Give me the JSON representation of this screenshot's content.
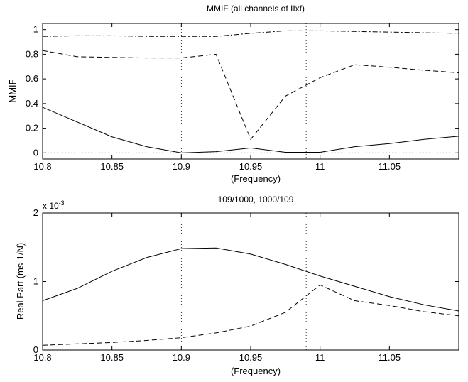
{
  "chart_data": [
    {
      "type": "line",
      "title": "MMIF (all channels of IIxf)",
      "xlabel": "(Frequency)",
      "ylabel": "MMIF",
      "xlim": [
        10.8,
        11.1
      ],
      "ylim": [
        -0.05,
        1.05
      ],
      "xticks": [
        "10.8",
        "10.85",
        "10.9",
        "10.95",
        "11",
        "11.05"
      ],
      "yticks": [
        "0",
        "0.2",
        "0.4",
        "0.6",
        "0.8",
        "1"
      ],
      "grid": false,
      "vlines": [
        10.9,
        10.99
      ],
      "hlines": [
        0,
        0.99
      ],
      "series": [
        {
          "style": "solid",
          "x": [
            10.8,
            10.825,
            10.85,
            10.875,
            10.9,
            10.925,
            10.95,
            10.975,
            11.0,
            11.025,
            11.05,
            11.075,
            11.1
          ],
          "y": [
            0.37,
            0.25,
            0.13,
            0.05,
            0.0,
            0.01,
            0.04,
            0.005,
            0.005,
            0.05,
            0.075,
            0.11,
            0.135
          ]
        },
        {
          "style": "dashed",
          "x": [
            10.8,
            10.825,
            10.85,
            10.875,
            10.9,
            10.925,
            10.95,
            10.975,
            11.0,
            11.025,
            11.05,
            11.075,
            11.1
          ],
          "y": [
            0.83,
            0.78,
            0.775,
            0.77,
            0.77,
            0.8,
            0.11,
            0.46,
            0.61,
            0.715,
            0.695,
            0.67,
            0.65
          ]
        },
        {
          "style": "dashdot",
          "x": [
            10.8,
            10.825,
            10.85,
            10.875,
            10.9,
            10.925,
            10.95,
            10.975,
            11.0,
            11.025,
            11.05,
            11.075,
            11.1
          ],
          "y": [
            0.945,
            0.95,
            0.95,
            0.945,
            0.945,
            0.945,
            0.97,
            0.99,
            0.99,
            0.985,
            0.98,
            0.975,
            0.97
          ]
        }
      ]
    },
    {
      "type": "line",
      "title": "109/1000, 1000/109",
      "xlabel": "(Frequency)",
      "ylabel": "Real Part (ms-1/N)",
      "xlim": [
        10.8,
        11.1
      ],
      "ylim": [
        0,
        0.002
      ],
      "xticks": [
        "10.8",
        "10.85",
        "10.9",
        "10.95",
        "11",
        "11.05"
      ],
      "yticks": [
        "0",
        "1",
        "2"
      ],
      "yscale_label": "x 10",
      "yscale_exponent": "-3",
      "grid": false,
      "vlines": [
        10.9,
        10.99
      ],
      "series": [
        {
          "style": "solid",
          "x": [
            10.8,
            10.825,
            10.85,
            10.875,
            10.9,
            10.925,
            10.95,
            10.975,
            11.0,
            11.025,
            11.05,
            11.075,
            11.1
          ],
          "y": [
            0.00072,
            0.0009,
            0.00115,
            0.00135,
            0.00148,
            0.00149,
            0.0014,
            0.00125,
            0.00108,
            0.00093,
            0.00078,
            0.00066,
            0.00057
          ]
        },
        {
          "style": "dashed",
          "x": [
            10.8,
            10.825,
            10.85,
            10.875,
            10.9,
            10.925,
            10.95,
            10.975,
            11.0,
            11.025,
            11.05,
            11.075,
            11.1
          ],
          "y": [
            7e-05,
            9e-05,
            0.00011,
            0.00014,
            0.00018,
            0.00025,
            0.00035,
            0.00055,
            0.00095,
            0.00072,
            0.00065,
            0.00056,
            0.0005
          ]
        }
      ]
    }
  ]
}
